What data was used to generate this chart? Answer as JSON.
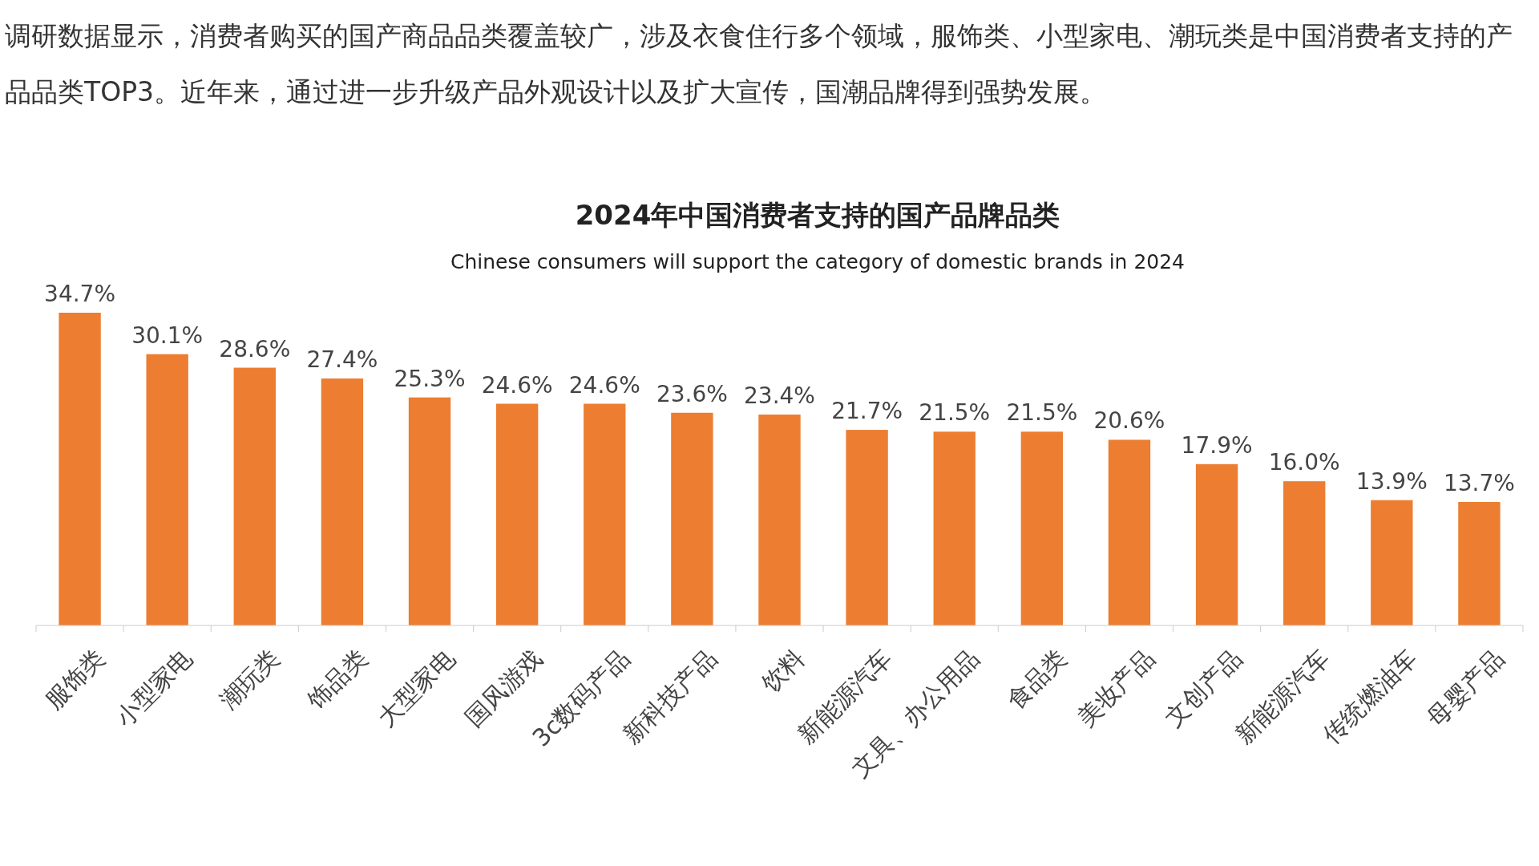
{
  "chart_data": {
    "type": "bar",
    "title": "2024年中国消费者支持的国产品牌品类",
    "subtitle": "Chinese consumers will support the category of domestic brands in 2024",
    "annotations": [
      "调研数据显示，消费者购买的国产商品品类覆盖较广，涉及衣食住行多个领域，服饰类、小型家电、潮玩类是中国消费者支持的产品品类TOP3。近年来，通过进一步升级产品外观设计以及扩大宣传，国潮品牌得到强势发展。"
    ],
    "categories": [
      "服饰类",
      "小型家电",
      "潮玩类",
      "饰品类",
      "大型家电",
      "国风游戏",
      "3c数码产品",
      "新科技产品",
      "饮料",
      "新能源汽车",
      "文具、办公用品",
      "食品类",
      "美妆产品",
      "文创产品",
      "新能源汽车",
      "传统燃油车",
      "母婴产品"
    ],
    "values": [
      34.7,
      30.1,
      28.6,
      27.4,
      25.3,
      24.6,
      24.6,
      23.6,
      23.4,
      21.7,
      21.5,
      21.5,
      20.6,
      17.9,
      16.0,
      13.9,
      13.7
    ],
    "value_labels": [
      "34.7%",
      "30.1%",
      "28.6%",
      "27.4%",
      "25.3%",
      "24.6%",
      "24.6%",
      "23.6%",
      "23.4%",
      "21.7%",
      "21.5%",
      "21.5%",
      "20.6%",
      "17.9%",
      "16.0%",
      "13.9%",
      "13.7%"
    ],
    "color": "#ed7d31"
  }
}
